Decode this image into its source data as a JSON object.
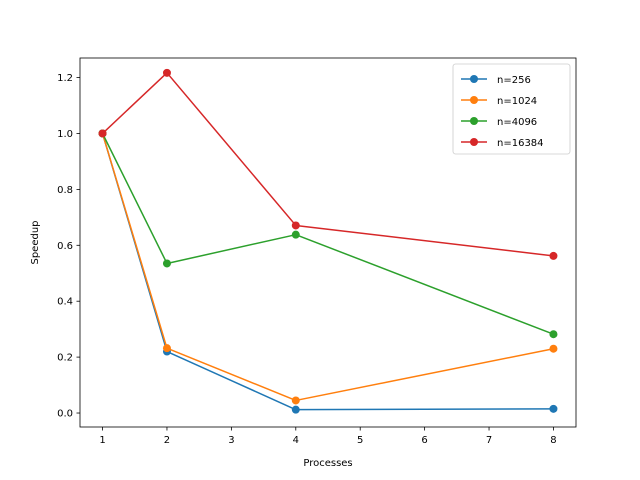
{
  "chart_data": {
    "type": "line",
    "title": "",
    "xlabel": "Processes",
    "ylabel": "Speedup",
    "xlim": [
      0.65,
      8.35
    ],
    "ylim": [
      -0.05,
      1.27
    ],
    "x_ticks": [
      1,
      2,
      3,
      4,
      5,
      6,
      7,
      8
    ],
    "y_ticks": [
      0.0,
      0.2,
      0.4,
      0.6,
      0.8,
      1.0,
      1.2
    ],
    "x_tick_labels": [
      "1",
      "2",
      "3",
      "4",
      "5",
      "6",
      "7",
      "8"
    ],
    "y_tick_labels": [
      "0.0",
      "0.2",
      "0.4",
      "0.6",
      "0.8",
      "1.0",
      "1.2"
    ],
    "grid": false,
    "legend_position": "top-right",
    "x": [
      1,
      2,
      4,
      8
    ],
    "series": [
      {
        "name": "n=256",
        "color": "#1f77b4",
        "values": [
          1.0,
          0.22,
          0.012,
          0.015
        ]
      },
      {
        "name": "n=1024",
        "color": "#ff7f0e",
        "values": [
          1.0,
          0.232,
          0.045,
          0.23
        ]
      },
      {
        "name": "n=4096",
        "color": "#2ca02c",
        "values": [
          1.0,
          0.535,
          0.638,
          0.282
        ]
      },
      {
        "name": "n=16384",
        "color": "#d62728",
        "values": [
          1.0,
          1.217,
          0.671,
          0.562
        ]
      }
    ]
  }
}
